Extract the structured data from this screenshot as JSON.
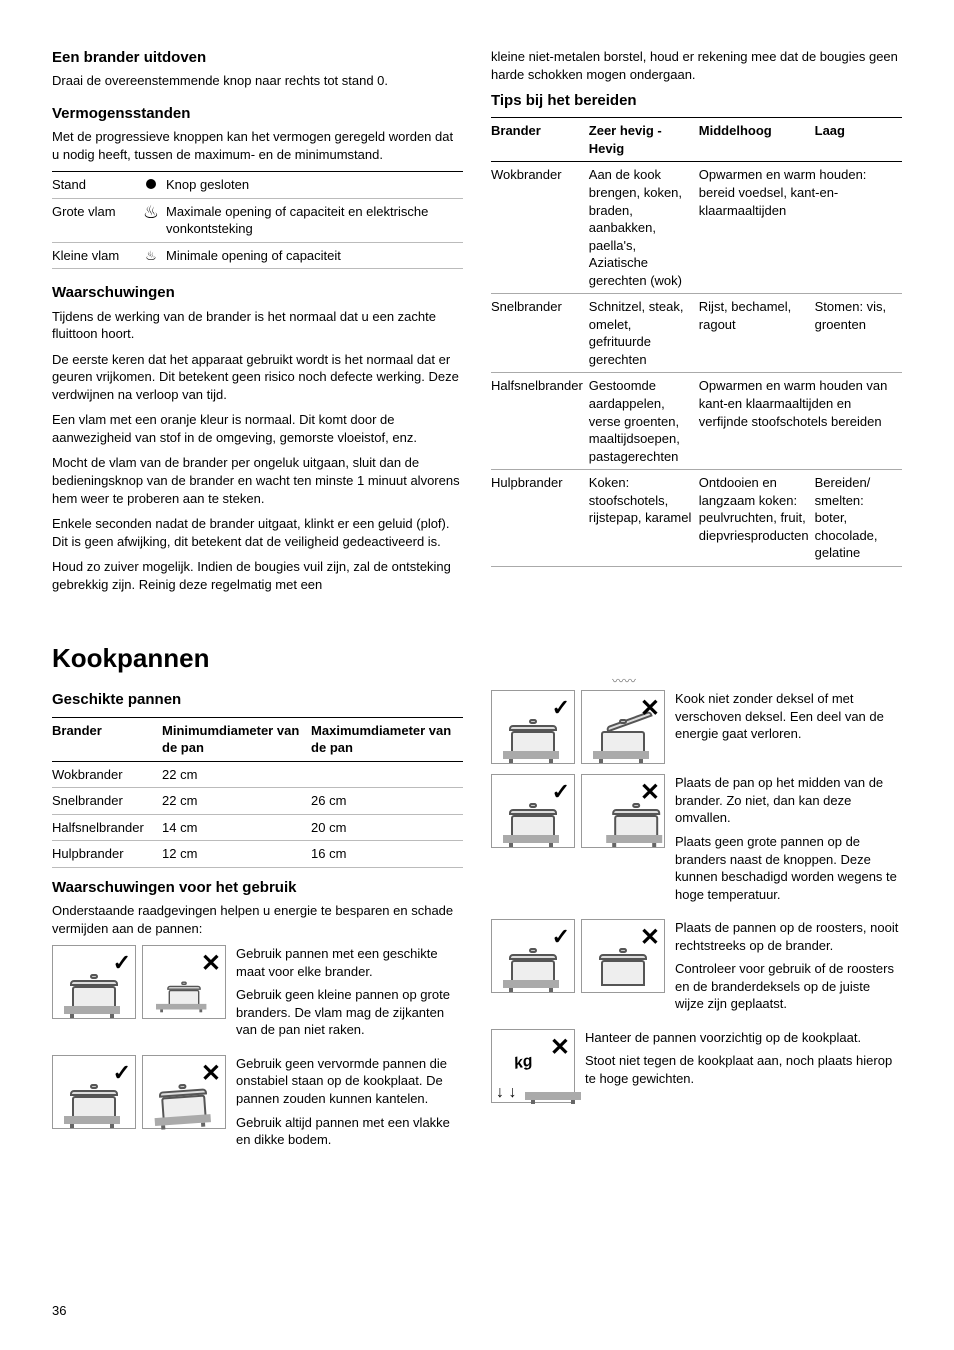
{
  "page_number": "36",
  "left": {
    "h_uitdoven": "Een brander uitdoven",
    "p_uitdoven": "Draai de overeenstemmende knop naar rechts tot stand 0.",
    "h_vermogen": "Vermogensstanden",
    "p_vermogen": "Met de progressieve knoppen kan het vermogen geregeld worden dat u nodig heeft, tussen de maximum- en de minimumstand.",
    "tbl_stand": {
      "rows": [
        {
          "c1": "Stand",
          "icon": "dot",
          "c3": "Knop gesloten"
        },
        {
          "c1": "Grote vlam",
          "icon": "flame-lg",
          "c3": "Maximale opening of capaciteit en elektrische vonkontsteking"
        },
        {
          "c1": "Kleine vlam",
          "icon": "flame-sm",
          "c3": "Minimale opening of capaciteit"
        }
      ]
    },
    "h_waarsch": "Waarschuwingen",
    "p_w1": "Tijdens de werking van de brander is het normaal dat u een zachte fluittoon hoort.",
    "p_w2": "De eerste keren dat het apparaat gebruikt wordt is het normaal dat er geuren vrijkomen. Dit betekent geen risico noch defecte werking. Deze verdwijnen na verloop van tijd.",
    "p_w3": "Een vlam met een oranje kleur is normaal. Dit komt door de aanwezigheid van stof in de omgeving, gemorste vloeistof, enz.",
    "p_w4": "Mocht de vlam van de brander per ongeluk uitgaan, sluit dan de bedieningsknop van de brander en wacht ten minste 1 minuut alvorens hem weer te proberen aan te steken.",
    "p_w5": "Enkele seconden nadat de brander uitgaat, klinkt er een geluid (plof). Dit is geen afwijking, dit betekent dat de veiligheid gedeactiveerd is.",
    "p_w6": "Houd zo zuiver mogelijk. Indien de bougies vuil zijn, zal de ontsteking gebrekkig zijn. Reinig deze regelmatig met een"
  },
  "right": {
    "p_cont": "kleine niet-metalen borstel, houd er rekening mee dat de bougies geen harde schokken mogen ondergaan.",
    "h_tips": "Tips bij het bereiden",
    "tips_head": {
      "c1": "Brander",
      "c2": "Zeer hevig - Hevig",
      "c3": "Middelhoog",
      "c4": "Laag"
    },
    "tips_rows": [
      {
        "c1": "Wokbrander",
        "c2": "Aan de kook brengen, koken, braden, aanbakken, paella's, Aziatische gerechten (wok)",
        "c3": "Opwarmen en warm houden: bereid voedsel, kant-en-klaarmaaltijden",
        "c4": ""
      },
      {
        "c1": "Snelbrander",
        "c2": "Schnitzel, steak, omelet, gefrituurde gerechten",
        "c3": "Rijst, bechamel, ragout",
        "c4": "Stomen: vis, groenten"
      },
      {
        "c1": "Halfsnelbrander",
        "c2": "Gestoomde aardappelen, verse groenten, maaltijdsoepen, pastagerechten",
        "c3": "Opwarmen en warm houden van kant-en klaarmaaltijden en verfijnde stoofschotels bereiden",
        "c4": ""
      },
      {
        "c1": "Hulpbrander",
        "c2": "Koken: stoofschotels, rijstepap, karamel",
        "c3": "Ontdooien en langzaam koken: peulvruchten, fruit, diepvriesproducten",
        "c4": "Bereiden/ smelten: boter, chocolade, gelatine"
      }
    ]
  },
  "kook": {
    "h_main": "Kookpannen",
    "h_geschikt": "Geschikte pannen",
    "pan_head": {
      "c1": "Brander",
      "c2": "Minimumdiameter van de pan",
      "c3": "Maximumdiameter van de pan"
    },
    "pan_rows": [
      {
        "c1": "Wokbrander",
        "c2": "22 cm",
        "c3": ""
      },
      {
        "c1": "Snelbrander",
        "c2": "22 cm",
        "c3": "26 cm"
      },
      {
        "c1": "Halfsnelbrander",
        "c2": "14 cm",
        "c3": "20 cm"
      },
      {
        "c1": "Hulpbrander",
        "c2": "12 cm",
        "c3": "16 cm"
      }
    ],
    "h_gebruik": "Waarschuwingen voor het gebruik",
    "p_gebruik": "Onderstaande raadgevingen helpen u energie te besparen en schade vermijden aan de pannen:",
    "tips_left": [
      "Gebruik pannen met een geschikte maat voor elke brander.",
      "Gebruik geen kleine pannen op grote branders. De vlam mag de zijkanten van de pan niet raken.",
      "Gebruik geen vervormde pannen die onstabiel staan op de kookplaat. De pannen zouden kunnen kantelen.",
      "Gebruik altijd pannen met een vlakke en dikke bodem."
    ],
    "tips_right": [
      "Kook niet zonder deksel of met verschoven deksel. Een deel van de energie gaat verloren.",
      "Plaats de pan op het midden van de brander. Zo niet, dan kan deze omvallen.",
      "Plaats geen grote pannen op de branders naast de knoppen. Deze kunnen beschadigd worden wegens te hoge temperatuur.",
      "Plaats de pannen op de roosters, nooit rechtstreeks op de brander.",
      "Controleer voor gebruik of de roosters en de branderdeksels op de juiste wijze zijn geplaatst.",
      "Hanteer de pannen voorzichtig op de kookplaat.",
      "Stoot niet tegen de kookplaat aan, noch plaats hierop te hoge gewichten."
    ]
  }
}
